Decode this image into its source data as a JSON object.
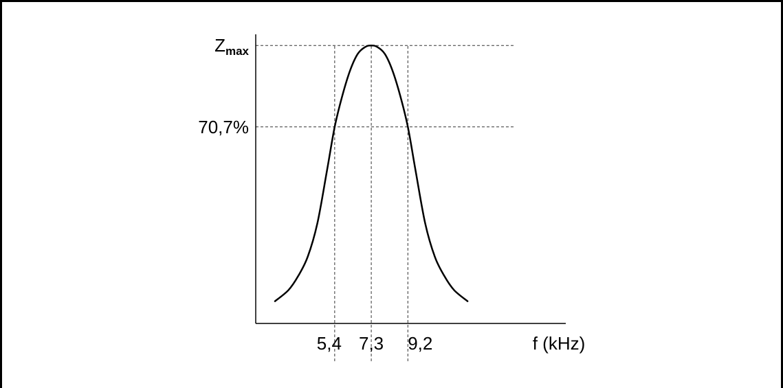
{
  "chart_data": {
    "type": "line",
    "title": "",
    "xlabel": "f (kHz)",
    "ylabel": "",
    "x_ticks": [
      {
        "value": 5.4,
        "label": "5,4"
      },
      {
        "value": 7.3,
        "label": "7,3"
      },
      {
        "value": 9.2,
        "label": "9,2"
      }
    ],
    "y_ticks": [
      {
        "value": 1.0,
        "label_main": "Z",
        "label_sub": "max"
      },
      {
        "value": 0.707,
        "label_main": "70,7%",
        "label_sub": ""
      }
    ],
    "xlim": [
      1.3,
      17.4
    ],
    "ylim": [
      0,
      1.04
    ],
    "series": [
      {
        "color": "#000000",
        "x": [
          2.3,
          3.0,
          3.5,
          4.0,
          4.5,
          5.0,
          5.4,
          5.8,
          6.2,
          6.6,
          7.0,
          7.3,
          7.6,
          8.0,
          8.4,
          8.8,
          9.2,
          9.6,
          10.1,
          10.6,
          11.1,
          11.6,
          12.3
        ],
        "y": [
          0.08,
          0.12,
          0.17,
          0.24,
          0.36,
          0.55,
          0.707,
          0.82,
          0.91,
          0.97,
          0.995,
          1.0,
          0.995,
          0.97,
          0.91,
          0.82,
          0.707,
          0.55,
          0.36,
          0.24,
          0.17,
          0.12,
          0.08
        ]
      }
    ],
    "guide_lines": {
      "vertical_at": [
        5.4,
        7.3,
        9.2
      ],
      "horizontal_at": [
        1.0,
        0.707
      ],
      "style": "dashed"
    },
    "grid": false,
    "legend": "none"
  },
  "colors": {
    "frame": "#000000",
    "axis": "#000000",
    "curve": "#000000",
    "guides": "#333333",
    "background": "#ffffff"
  }
}
